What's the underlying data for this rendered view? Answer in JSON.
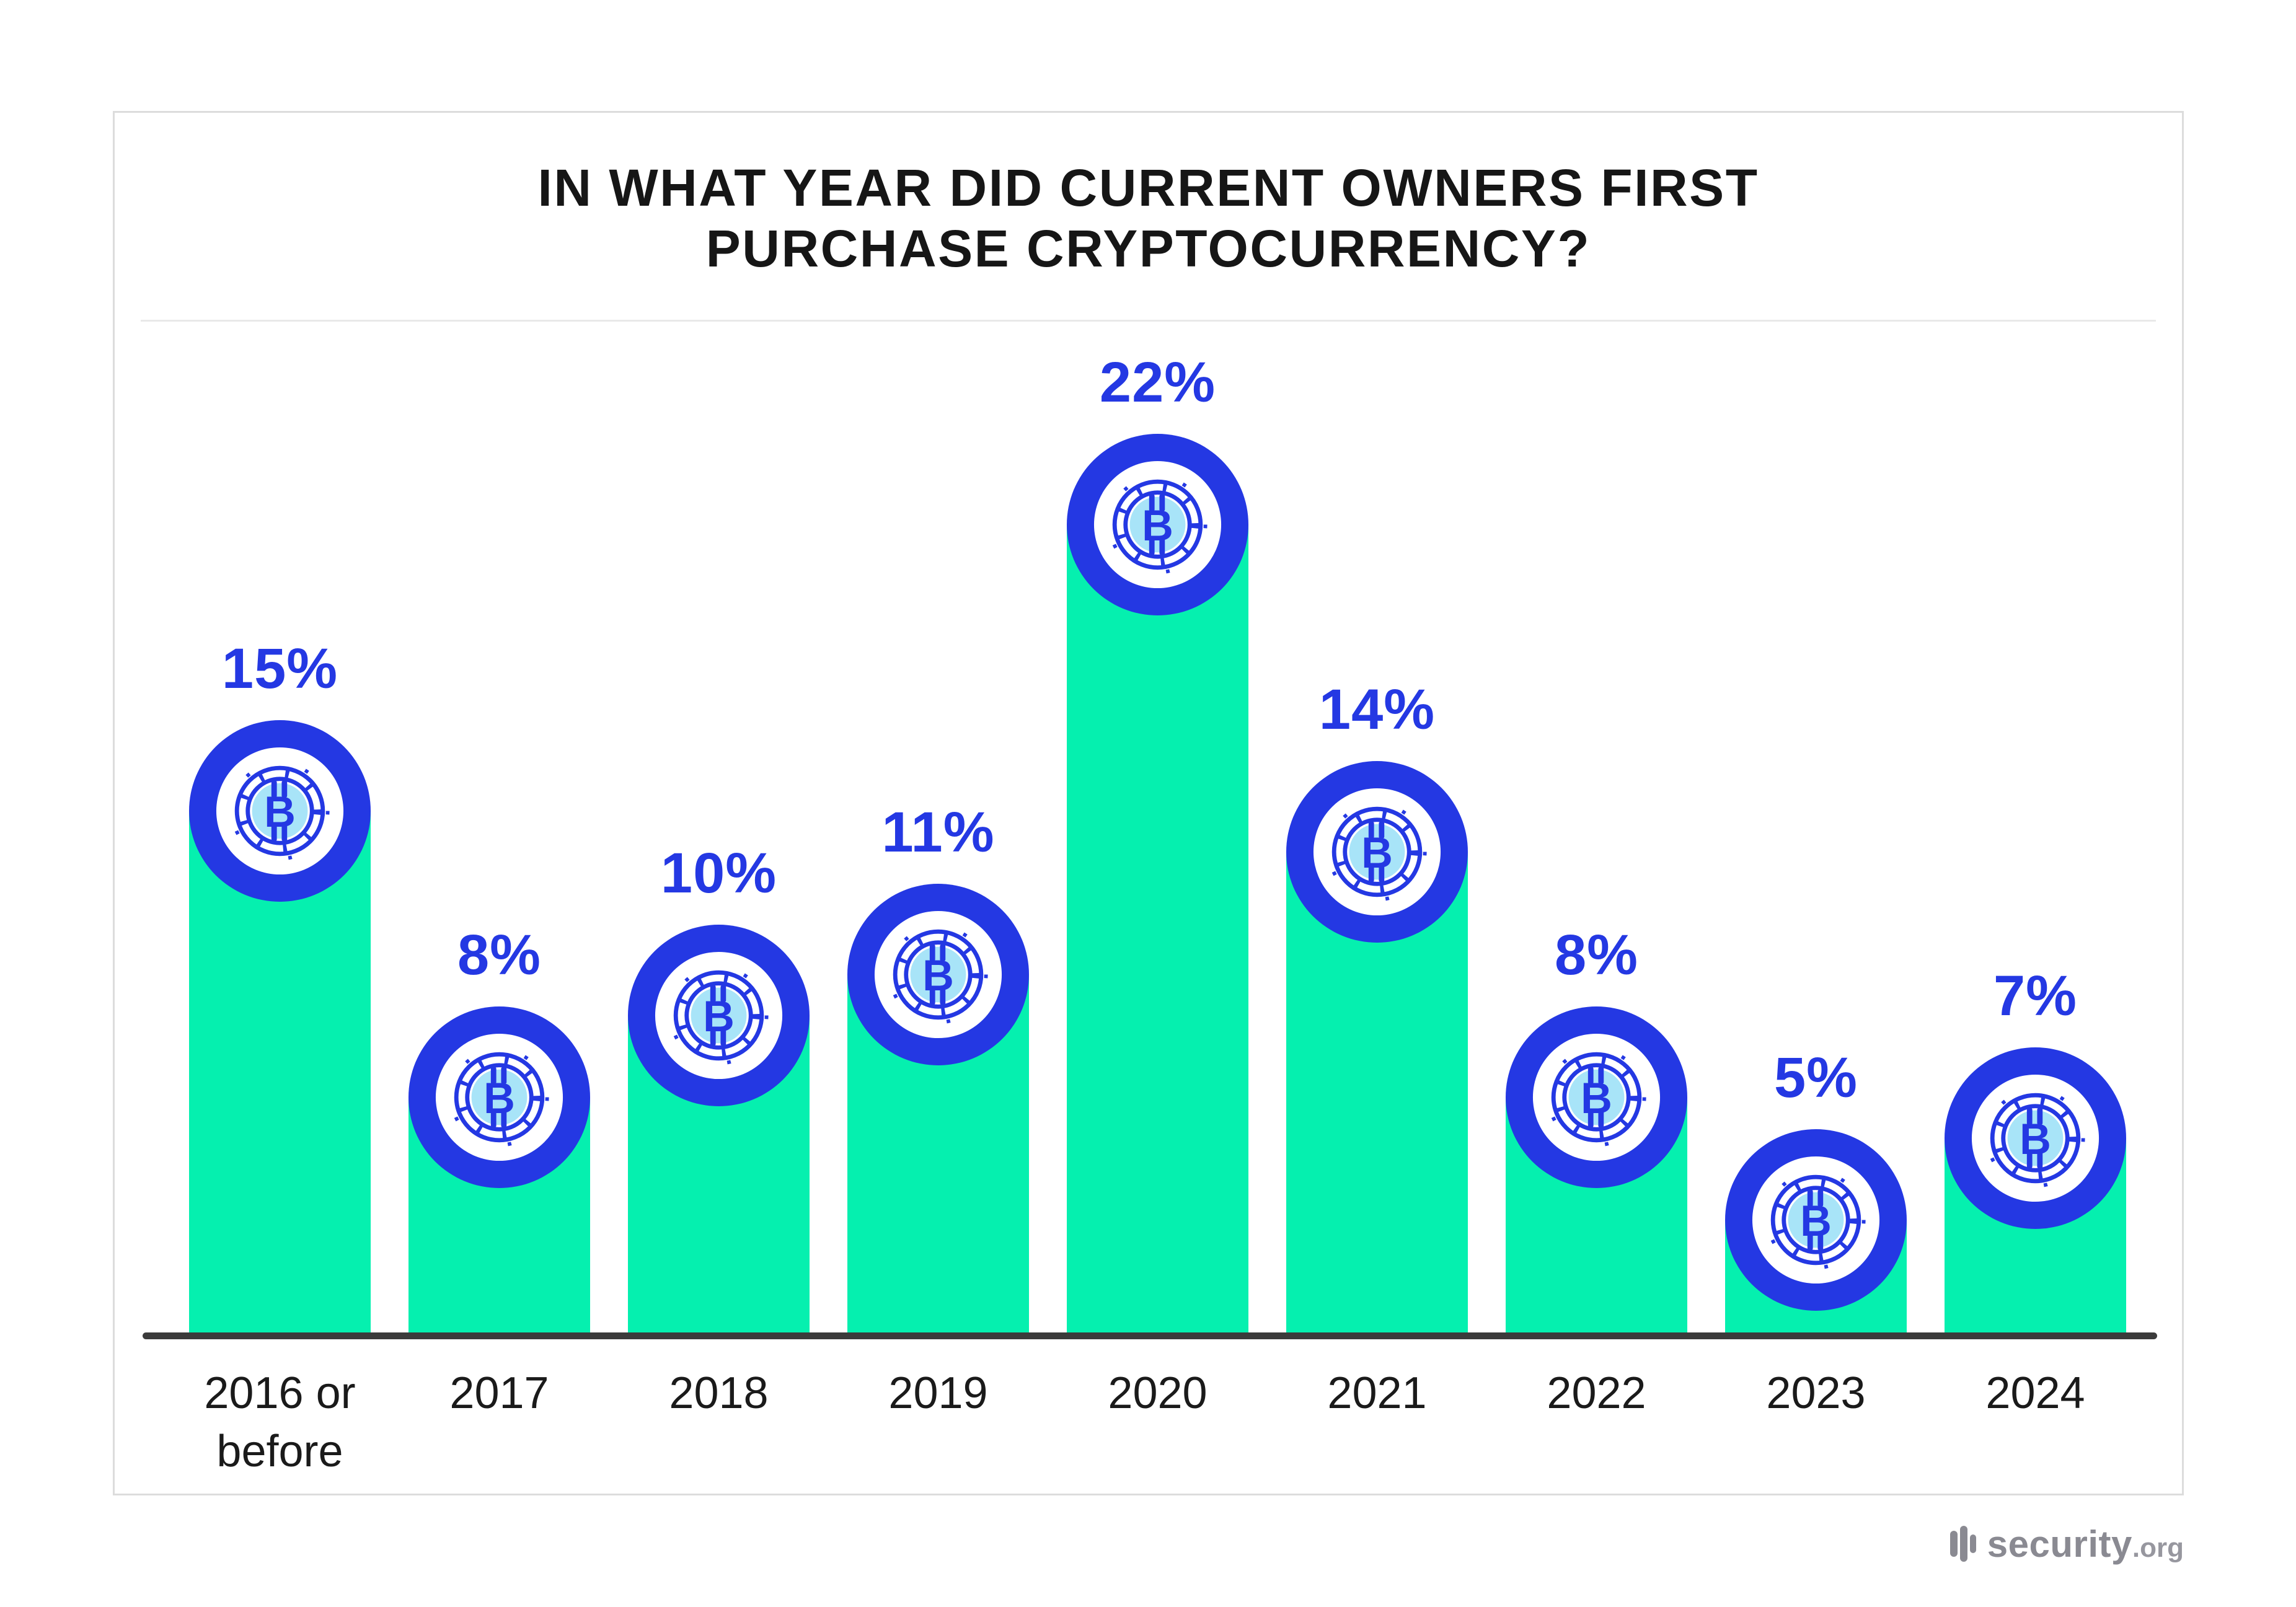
{
  "title": "IN WHAT YEAR DID CURRENT OWNERS FIRST PURCHASE CRYPTOCURRENCY?",
  "chart_data": {
    "type": "bar",
    "title": "IN WHAT YEAR DID CURRENT OWNERS FIRST PURCHASE CRYPTOCURRENCY?",
    "categories": [
      "2016 or before",
      "2017",
      "2018",
      "2019",
      "2020",
      "2021",
      "2022",
      "2023",
      "2024"
    ],
    "values": [
      15,
      8,
      10,
      11,
      22,
      14,
      8,
      5,
      7
    ],
    "unit": "%",
    "xlabel": "",
    "ylabel": "",
    "ylim": [
      0,
      22
    ],
    "grid": false,
    "legend": "none",
    "bar_color": "#05F0AF",
    "value_label_color": "#2438E3",
    "axis_line_color": "#3B3B3B",
    "marker_icon": "bitcoin-coin-icon"
  },
  "colors": {
    "bar_green": "#05F0AF",
    "coin_blue": "#2438E3",
    "coin_light_blue": "#A8E4F8",
    "title_text": "#161616",
    "year_label_text": "#1A1A1A",
    "card_border": "#DCDCDC",
    "divider": "#E9E9E9",
    "logo_gray": "#8A8A92"
  },
  "footer": {
    "logo_text": "security",
    "logo_suffix": ".org",
    "logo_icon": "signal-bars-icon"
  }
}
